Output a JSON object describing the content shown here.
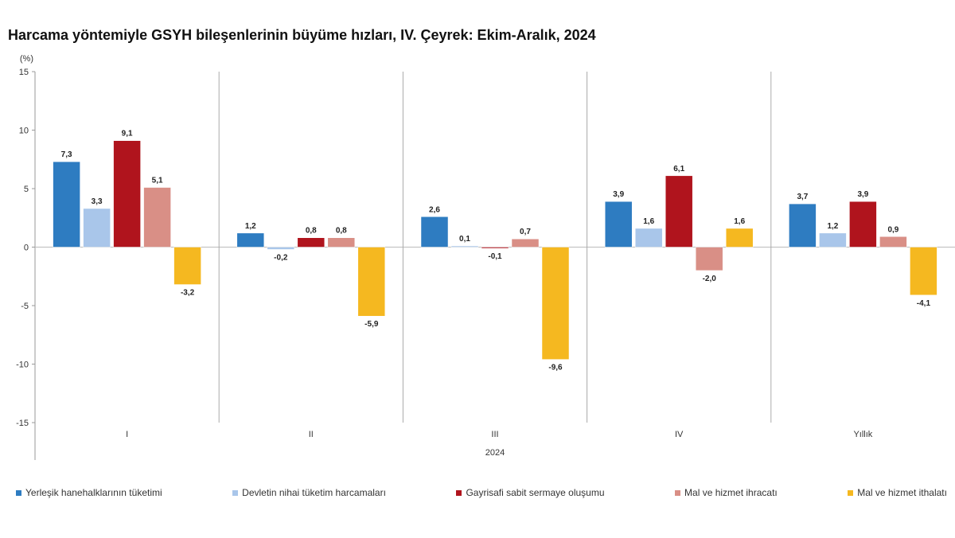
{
  "chart_data": {
    "type": "bar",
    "title": "Harcama yöntemiyle GSYH bileşenlerinin büyüme hızları, IV. Çeyrek: Ekim-Aralık, 2024",
    "ylabel": "(%)",
    "xlabel": "2024",
    "ylim": [
      -15,
      15
    ],
    "yticks": [
      15,
      10,
      5,
      0,
      -5,
      -10,
      -15
    ],
    "categories": [
      "I",
      "II",
      "III",
      "IV",
      "Yıllık"
    ],
    "series": [
      {
        "name": "Yerleşik hanehalklarının tüketimi",
        "color": "#2e7cc1",
        "values": [
          7.3,
          1.2,
          2.6,
          3.9,
          3.7
        ],
        "labels": [
          "7,3",
          "1,2",
          "2,6",
          "3,9",
          "3,7"
        ]
      },
      {
        "name": "Devletin nihai tüketim harcamaları",
        "color": "#a9c6ea",
        "values": [
          3.3,
          -0.2,
          0.1,
          1.6,
          1.2
        ],
        "labels": [
          "3,3",
          "-0,2",
          "0,1",
          "1,6",
          "1,2"
        ]
      },
      {
        "name": "Gayrisafi sabit sermaye oluşumu",
        "color": "#b0141d",
        "values": [
          9.1,
          0.8,
          -0.1,
          6.1,
          3.9
        ],
        "labels": [
          "9,1",
          "0,8",
          "-0,1",
          "6,1",
          "3,9"
        ]
      },
      {
        "name": "Mal ve hizmet ihracatı",
        "color": "#d98f86",
        "values": [
          5.1,
          0.8,
          0.7,
          -2.0,
          0.9
        ],
        "labels": [
          "5,1",
          "0,8",
          "0,7",
          "-2,0",
          "0,9"
        ]
      },
      {
        "name": "Mal ve hizmet ithalatı",
        "color": "#f5b820",
        "values": [
          -3.2,
          -5.9,
          -9.6,
          1.6,
          -4.1
        ],
        "labels": [
          "-3,2",
          "-5,9",
          "-9,6",
          "1,6",
          "-4,1"
        ]
      }
    ]
  }
}
